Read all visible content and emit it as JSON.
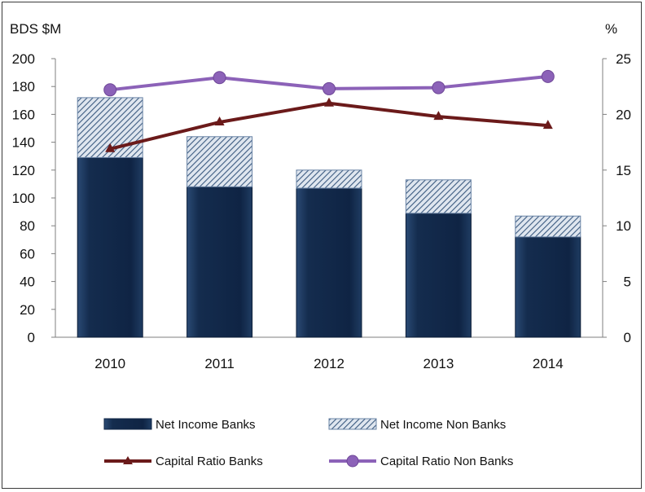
{
  "chart_data": {
    "type": "bar",
    "categories": [
      "2010",
      "2011",
      "2012",
      "2013",
      "2014"
    ],
    "left_axis": {
      "unit_label": "BDS $M",
      "ylim": [
        0,
        200
      ],
      "ticks": [
        "0",
        "20",
        "40",
        "60",
        "80",
        "100",
        "120",
        "140",
        "160",
        "180",
        "200"
      ]
    },
    "right_axis": {
      "unit_label": "%",
      "ylim": [
        0,
        25
      ],
      "ticks": [
        "0",
        "5",
        "10",
        "15",
        "20",
        "25"
      ]
    },
    "series": [
      {
        "name": "Net Income Banks",
        "kind": "stacked-bar",
        "axis": "left",
        "color": "#142c4e",
        "values": [
          129,
          108,
          107,
          89,
          72
        ]
      },
      {
        "name": "Net Income Non Banks",
        "kind": "stacked-bar",
        "axis": "left",
        "color": "#8fa3bd",
        "values": [
          43,
          36,
          13,
          24,
          15
        ]
      },
      {
        "name": "Capital Ratio Banks",
        "kind": "line",
        "axis": "right",
        "color": "#6b1a1a",
        "marker": "triangle",
        "values": [
          16.9,
          19.3,
          21.0,
          19.8,
          19.0
        ]
      },
      {
        "name": "Capital Ratio Non Banks",
        "kind": "line",
        "axis": "right",
        "color": "#8c62b8",
        "marker": "circle",
        "values": [
          22.2,
          23.3,
          22.3,
          22.4,
          23.4
        ]
      }
    ],
    "grid": false,
    "legend_position": "bottom"
  }
}
